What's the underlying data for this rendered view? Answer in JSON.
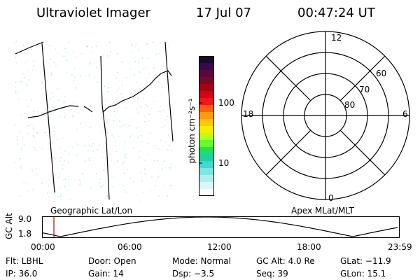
{
  "header": {
    "instrument": "Ultraviolet Imager",
    "date": "17 Jul 07",
    "time": "00:47:24 UT"
  },
  "colorbar": {
    "unit_label": "photon cm⁻²s⁻¹",
    "ticks": [
      "100",
      "10"
    ],
    "colors": [
      "#1a0a2e",
      "#3b0a4a",
      "#5a0a3a",
      "#7a0a1e",
      "#a80010",
      "#d40018",
      "#f01818",
      "#ff6010",
      "#ff9a10",
      "#ffc800",
      "#f0f000",
      "#b8ff20",
      "#60ff30",
      "#20e060",
      "#20d0a0",
      "#40d8d0",
      "#80e4e4",
      "#b0eeee",
      "#dcf6f6",
      "#ffffff"
    ]
  },
  "polar_plot": {
    "mlt_labels": [
      "12",
      "18",
      "6",
      "0"
    ],
    "lat_labels": [
      "60",
      "70",
      "80"
    ]
  },
  "timeline": {
    "left_title": "Geographic Lat/Lon",
    "right_title": "Apex MLat/MLT",
    "axis_label": "GC Alt",
    "y_ticks": [
      "9.0",
      "1.8"
    ],
    "x_ticks": [
      "00:00",
      "06:00",
      "12:00",
      "18:00",
      "23:59"
    ],
    "marker_color": "#c00000"
  },
  "info": {
    "flt": "Flt: LBHL",
    "door": "Door: Open",
    "mode": "Mode: Normal",
    "gc_alt": "GC Alt: 4.0 Re",
    "glat": "GLat: −11.9",
    "ip": "IP: 36.0",
    "gain": "Gain: 14",
    "dsp": "Dsp:   −3.5",
    "seq": "Seq: 39",
    "glon": "GLon:  15.1"
  }
}
